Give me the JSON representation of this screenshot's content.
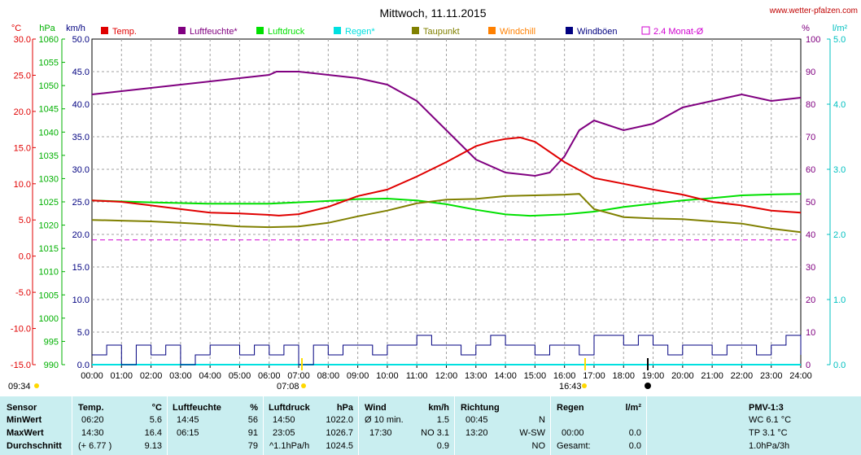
{
  "title": "Mittwoch, 11.11.2015",
  "site": "www.wetter-pfalzen.com",
  "units": {
    "temp": "°C",
    "pressure": "hPa",
    "wind": "km/h",
    "humidity": "%",
    "rain": "l/m²"
  },
  "legend": [
    {
      "label": "Temp.",
      "color": "#e00000",
      "style": "box"
    },
    {
      "label": "Luftfeuchte*",
      "color": "#800080",
      "style": "box"
    },
    {
      "label": "Luftdruck",
      "color": "#00e000",
      "style": "box"
    },
    {
      "label": "Regen*",
      "color": "#00e0e0",
      "style": "box"
    },
    {
      "label": "Taupunkt",
      "color": "#808000",
      "style": "box"
    },
    {
      "label": "Windchill",
      "color": "#ff8000",
      "style": "box"
    },
    {
      "label": "Windböen",
      "color": "#000080",
      "style": "box"
    },
    {
      "label": "2.4 Monat-Ø",
      "color": "#d000d0",
      "style": "outline"
    }
  ],
  "axes": {
    "temp_ticks": [
      "30.0",
      "25.0",
      "20.0",
      "15.0",
      "10.0",
      "5.0",
      "0.0",
      "-5.0",
      "-10.0",
      "-15.0"
    ],
    "pressure_ticks": [
      "1060",
      "1055",
      "1050",
      "1045",
      "1040",
      "1035",
      "1030",
      "1025",
      "1020",
      "1015",
      "1010",
      "1005",
      "1000",
      "995",
      "990"
    ],
    "wind_ticks": [
      "50.0",
      "45.0",
      "40.0",
      "35.0",
      "30.0",
      "25.0",
      "20.0",
      "15.0",
      "10.0",
      "5.0",
      "0.0"
    ],
    "humidity_ticks": [
      "100",
      "90",
      "80",
      "70",
      "60",
      "50",
      "40",
      "30",
      "20",
      "10",
      "0"
    ],
    "rain_ticks": [
      "5.0",
      "4.0",
      "3.0",
      "2.0",
      "1.0",
      "0.0"
    ],
    "time_ticks": [
      "00:00",
      "01:00",
      "02:00",
      "03:00",
      "04:00",
      "05:00",
      "06:00",
      "07:00",
      "08:00",
      "09:00",
      "10:00",
      "11:00",
      "12:00",
      "13:00",
      "14:00",
      "15:00",
      "16:00",
      "17:00",
      "18:00",
      "19:00",
      "20:00",
      "21:00",
      "22:00",
      "23:00",
      "24:00"
    ],
    "sun_markers": [
      "09:34",
      "07:08",
      "16:43"
    ]
  },
  "chart_data": {
    "type": "line",
    "title": "Mittwoch, 11.11.2015",
    "x_unit": "hour of day",
    "x_range": [
      0,
      24
    ],
    "series": [
      {
        "name": "Temp.",
        "axis": "temp",
        "ylim": [
          -15,
          30
        ],
        "color": "#e00000",
        "x": [
          0,
          1,
          2,
          3,
          4,
          5,
          6,
          6.33,
          7,
          8,
          9,
          10,
          11,
          12,
          13,
          13.5,
          14,
          14.5,
          15,
          16,
          17,
          18,
          19,
          20,
          21,
          22,
          23,
          24
        ],
        "y": [
          7.7,
          7.5,
          7.0,
          6.5,
          6.0,
          5.9,
          5.7,
          5.6,
          5.8,
          6.8,
          8.3,
          9.2,
          11.0,
          13.0,
          15.2,
          15.8,
          16.2,
          16.4,
          15.8,
          13.0,
          10.8,
          10.0,
          9.2,
          8.5,
          7.5,
          7.0,
          6.3,
          6.0
        ]
      },
      {
        "name": "Luftfeuchte*",
        "axis": "humidity",
        "ylim": [
          0,
          100
        ],
        "color": "#800080",
        "x": [
          0,
          1,
          2,
          3,
          4,
          5,
          6,
          6.25,
          7,
          8,
          9,
          10,
          11,
          12,
          13,
          14,
          15,
          15.5,
          16,
          16.5,
          17,
          18,
          19,
          20,
          21,
          22,
          23,
          24
        ],
        "y": [
          83,
          84,
          85,
          86,
          87,
          88,
          89,
          90,
          90,
          89,
          88,
          86,
          81,
          72,
          63,
          59,
          58,
          59,
          64,
          72,
          75,
          72,
          74,
          79,
          81,
          83,
          81,
          82
        ]
      },
      {
        "name": "Luftdruck",
        "axis": "pressure",
        "ylim": [
          990,
          1060
        ],
        "color": "#00e000",
        "x": [
          0,
          2,
          4,
          6,
          8,
          9,
          10,
          11,
          12,
          13,
          14,
          14.83,
          16,
          17,
          18,
          19,
          20,
          21,
          22,
          23,
          24
        ],
        "y": [
          1025.3,
          1024.9,
          1024.6,
          1024.6,
          1025.2,
          1025.6,
          1025.7,
          1025.3,
          1024.5,
          1023.3,
          1022.3,
          1022.0,
          1022.3,
          1022.9,
          1023.9,
          1024.6,
          1025.3,
          1025.8,
          1026.4,
          1026.6,
          1026.7
        ]
      },
      {
        "name": "Taupunkt",
        "axis": "temp",
        "ylim": [
          -15,
          30
        ],
        "color": "#808000",
        "x": [
          0,
          1,
          2,
          3,
          4,
          5,
          6,
          7,
          8,
          9,
          10,
          11,
          12,
          13,
          14,
          15,
          16,
          16.5,
          17,
          18,
          19,
          20,
          21,
          22,
          23,
          24
        ],
        "y": [
          5.0,
          4.9,
          4.8,
          4.6,
          4.4,
          4.1,
          4.0,
          4.1,
          4.6,
          5.5,
          6.3,
          7.3,
          7.8,
          7.9,
          8.3,
          8.4,
          8.5,
          8.6,
          6.5,
          5.4,
          5.2,
          5.1,
          4.8,
          4.5,
          3.8,
          3.3
        ]
      },
      {
        "name": "Windböen",
        "axis": "wind",
        "ylim": [
          0,
          50
        ],
        "color": "#000080",
        "x": [
          0,
          0.5,
          1,
          1.5,
          2,
          2.5,
          3,
          3.5,
          4,
          4.5,
          5,
          5.5,
          6,
          6.5,
          7,
          7.5,
          8,
          8.5,
          9,
          9.5,
          10,
          10.5,
          11,
          11.5,
          12,
          12.5,
          13,
          13.5,
          14,
          14.5,
          15,
          15.5,
          16,
          16.5,
          17,
          17.5,
          18,
          18.5,
          19,
          19.5,
          20,
          20.5,
          21,
          21.5,
          22,
          22.5,
          23,
          23.5,
          24
        ],
        "y": [
          1.5,
          3.0,
          0,
          3.0,
          1.5,
          3.0,
          0,
          1.5,
          3.0,
          3.0,
          1.5,
          3.0,
          1.5,
          3.0,
          0,
          3.0,
          1.5,
          3.0,
          3.0,
          1.5,
          3.0,
          3.0,
          4.5,
          3.0,
          3.0,
          1.5,
          3.0,
          4.5,
          3.0,
          3.0,
          1.5,
          3.0,
          3.0,
          1.5,
          4.5,
          4.5,
          3.0,
          4.5,
          3.0,
          1.5,
          3.0,
          3.0,
          1.5,
          3.0,
          3.0,
          1.5,
          3.0,
          4.5,
          1.5
        ]
      },
      {
        "name": "Regen*",
        "axis": "rain",
        "ylim": [
          0,
          5
        ],
        "color": "#00e0e0",
        "x": [
          0,
          24
        ],
        "y": [
          0,
          0
        ]
      },
      {
        "name": "2.4 Monat-Ø",
        "axis": "humidity",
        "ylim": [
          0,
          100
        ],
        "color": "#d000d0",
        "x": [
          0,
          24
        ],
        "y": [
          38.3,
          38.3
        ]
      }
    ]
  },
  "stats": {
    "headers": {
      "sensor": "Sensor",
      "temp": "Temp.",
      "temp_unit": "°C",
      "hum": "Luftfeuchte",
      "hum_unit": "%",
      "press": "Luftdruck",
      "press_unit": "hPa",
      "wind": "Wind",
      "wind_unit": "km/h",
      "dir": "Richtung",
      "rain": "Regen",
      "rain_unit": "l/m²",
      "pmv": "PMV-1:3"
    },
    "rows": [
      {
        "label": "MinWert",
        "temp_time": "06:20",
        "temp_val": "5.6",
        "hum_time": "14:45",
        "hum_val": "56",
        "press_time": "14:50",
        "press_val": "1022.0",
        "wind_lbl": "Ø 10 min.",
        "wind_val": "1.5",
        "dir_time": "00:45",
        "dir_val": "N",
        "rain_time": "",
        "rain_val": "",
        "pmv": "WC 6.1 °C"
      },
      {
        "label": "MaxWert",
        "temp_time": "14:30",
        "temp_val": "16.4",
        "hum_time": "06:15",
        "hum_val": "91",
        "press_time": "23:05",
        "press_val": "1026.7",
        "wind_lbl": "17:30",
        "wind_val": "NO 3.1",
        "dir_time": "13:20",
        "dir_val": "W-SW",
        "rain_time": "00:00",
        "rain_val": "0.0",
        "pmv": "TP 3.1 °C"
      },
      {
        "label": "Durchschnitt",
        "temp_time": "(+ 6.77 )",
        "temp_val": "9.13",
        "hum_time": "",
        "hum_val": "79",
        "press_time": "^1.1hPa/h",
        "press_val": "1024.5",
        "wind_lbl": "",
        "wind_val": "0.9",
        "dir_time": "",
        "dir_val": "NO",
        "rain_time": "Gesamt:",
        "rain_val": "0.0",
        "pmv": "1.0hPa/3h"
      }
    ]
  }
}
